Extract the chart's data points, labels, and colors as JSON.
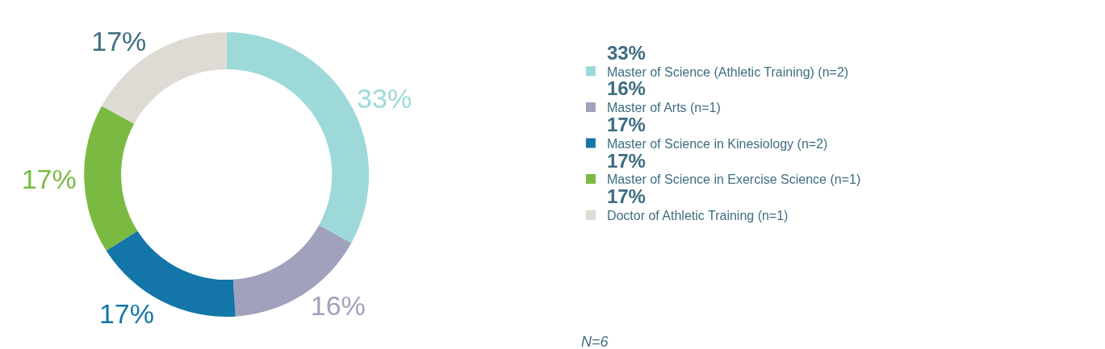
{
  "chart_data": {
    "type": "donut",
    "categories": [
      "Master of Science (Athletic Training) (n=2)",
      "Master of Arts (n=1)",
      "Master of Science in Kinesiology (n=2)",
      "Master of Science in Exercise Science (n=1)",
      "Doctor of Athletic Training (n=1)"
    ],
    "values": [
      33,
      16,
      17,
      17,
      17
    ],
    "value_labels": [
      "33%",
      "16%",
      "17%",
      "17%",
      "17%"
    ],
    "colors": [
      "#9dd9d9",
      "#a0a1bd",
      "#1475a8",
      "#7aba42",
      "#dedad4"
    ],
    "legend": "right",
    "annotations": [
      "N=6"
    ]
  }
}
